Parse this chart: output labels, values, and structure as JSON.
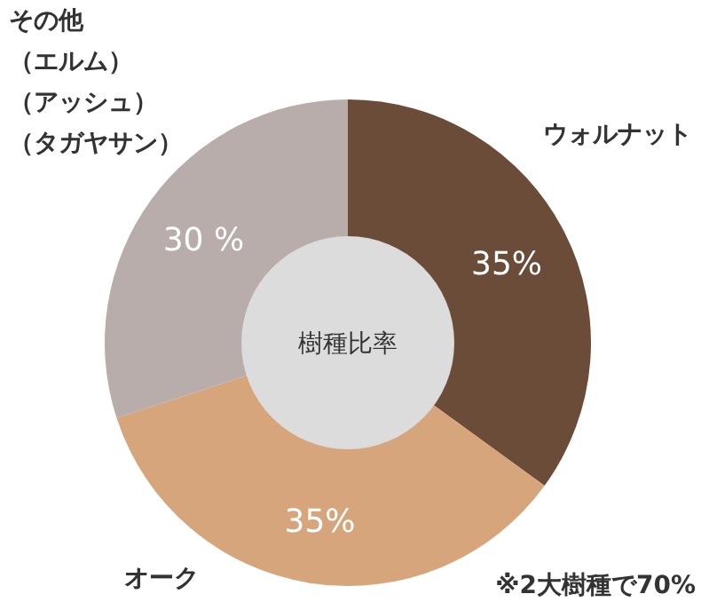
{
  "chart_data": {
    "type": "donut",
    "title": "樹種比率",
    "categories": [
      "ウォルナット",
      "オーク",
      "その他（エルム）（アッシュ）（タガヤサン）"
    ],
    "values": [
      35,
      35,
      30
    ],
    "colors": [
      "#6b4c38",
      "#d6a57c",
      "#b8adaa"
    ],
    "value_labels": [
      "35%",
      "35%",
      "30 %"
    ],
    "annotations": [
      "※2大樹種で70%"
    ]
  }
}
